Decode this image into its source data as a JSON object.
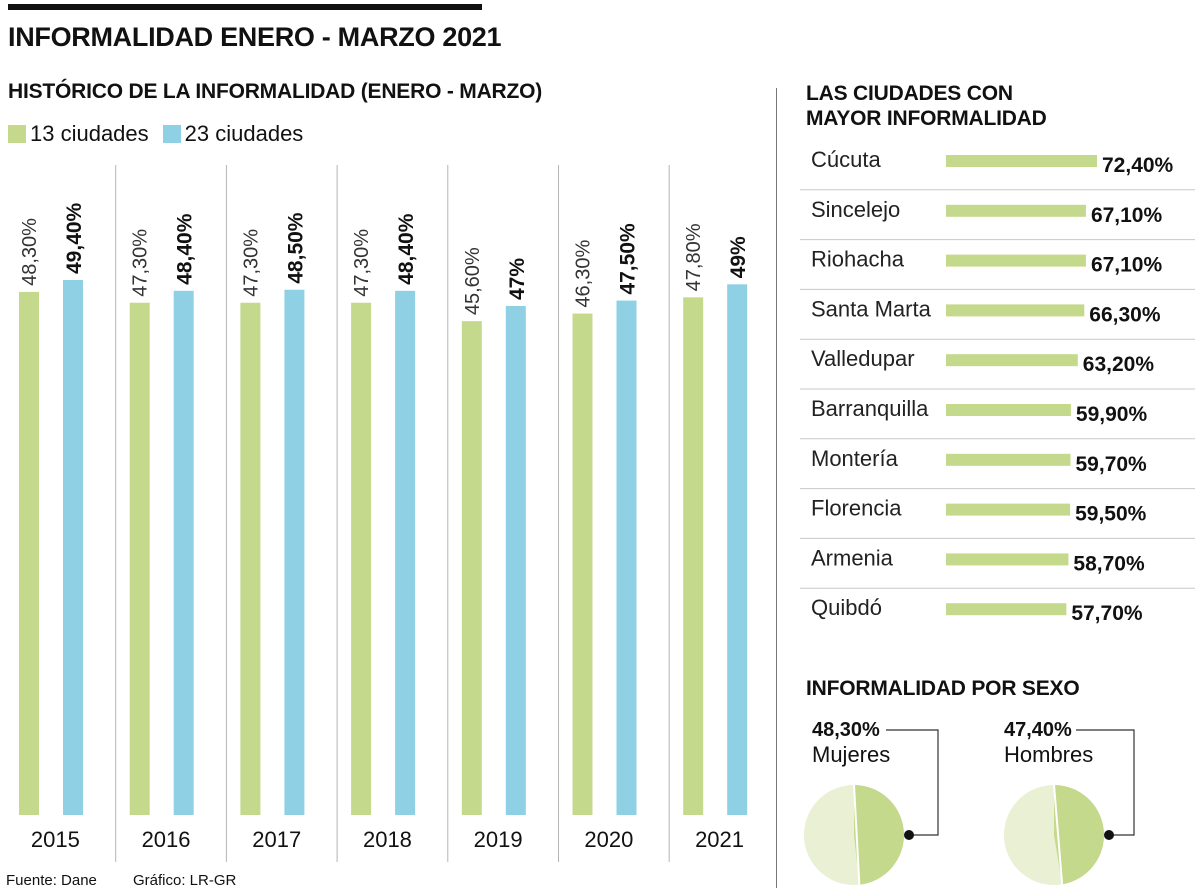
{
  "title": "INFORMALIDAD ENERO - MARZO 2021",
  "historic_title": "HISTÓRICO DE LA INFORMALIDAD (ENERO - MARZO)",
  "cities_title_line1": "LAS CIUDADES CON",
  "cities_title_line2": "MAYOR INFORMALIDAD",
  "sex_title": "INFORMALIDAD POR SEXO",
  "footer": {
    "source": "Fuente: Dane",
    "credit": "Gráfico: LR-GR"
  },
  "colors": {
    "green": "#c5d98d",
    "blue": "#8fd0e5",
    "pale_green": "#e9f0d3"
  },
  "chart_data": [
    {
      "type": "bar",
      "title": "HISTÓRICO DE LA INFORMALIDAD (ENERO - MARZO)",
      "categories": [
        "2015",
        "2016",
        "2017",
        "2018",
        "2019",
        "2020",
        "2021"
      ],
      "series": [
        {
          "name": "13 ciudades",
          "values": [
            48.3,
            47.3,
            47.3,
            47.3,
            45.6,
            46.3,
            47.8
          ],
          "labels": [
            "48,30%",
            "47,30%",
            "47,30%",
            "47,30%",
            "45,60%",
            "46,30%",
            "47,80%"
          ]
        },
        {
          "name": "23 ciudades",
          "values": [
            49.4,
            48.4,
            48.5,
            48.4,
            47.0,
            47.5,
            49.0
          ],
          "labels": [
            "49,40%",
            "48,40%",
            "48,50%",
            "48,40%",
            "47%",
            "47,50%",
            "49%"
          ]
        }
      ],
      "ylabel": "",
      "xlabel": "",
      "ylim": [
        0,
        49.4
      ]
    },
    {
      "type": "bar",
      "orientation": "horizontal",
      "title": "LAS CIUDADES CON MAYOR INFORMALIDAD",
      "categories": [
        "Cúcuta",
        "Sincelejo",
        "Riohacha",
        "Santa Marta",
        "Valledupar",
        "Barranquilla",
        "Montería",
        "Florencia",
        "Armenia",
        "Quibdó"
      ],
      "values": [
        72.4,
        67.1,
        67.1,
        66.3,
        63.2,
        59.9,
        59.7,
        59.5,
        58.7,
        57.7
      ],
      "labels": [
        "72,40%",
        "67,10%",
        "67,10%",
        "66,30%",
        "63,20%",
        "59,90%",
        "59,70%",
        "59,50%",
        "58,70%",
        "57,70%"
      ]
    },
    {
      "type": "pie",
      "title": "INFORMALIDAD POR SEXO",
      "charts": [
        {
          "name": "Mujeres",
          "value": 48.3,
          "label": "48,30%"
        },
        {
          "name": "Hombres",
          "value": 47.4,
          "label": "47,40%"
        }
      ]
    }
  ]
}
